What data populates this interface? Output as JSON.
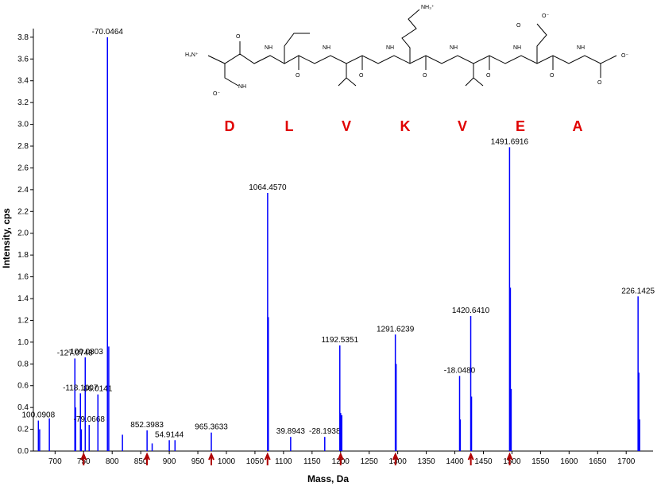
{
  "chart_data": {
    "type": "stem",
    "xlabel": "Mass, Da",
    "ylabel": "Intensity, cps",
    "color": "#0000ff",
    "x": [
      670.8,
      673,
      690,
      734.7,
      736,
      744.4,
      746,
      752.8,
      759.7,
      775,
      791.7,
      794,
      818,
      861.1,
      870,
      900,
      910,
      973.6,
      1072.2,
      1073.4,
      1112.5,
      1172.2,
      1198.6,
      1200,
      1202,
      1295.8,
      1297.2,
      1408.3,
      1409.5,
      1427.8,
      1429.2,
      1495.8,
      1497.2,
      1498.6,
      1720.8,
      1722.2,
      1723.6
    ],
    "values": [
      0.28,
      0.2,
      0.3,
      0.85,
      0.4,
      0.53,
      0.2,
      0.86,
      0.24,
      0.52,
      3.8,
      0.96,
      0.15,
      0.19,
      0.07,
      0.1,
      0.1,
      0.17,
      2.37,
      1.23,
      0.13,
      0.13,
      0.97,
      0.35,
      0.33,
      1.07,
      0.8,
      0.69,
      0.29,
      1.24,
      0.5,
      2.79,
      1.5,
      0.57,
      1.42,
      0.72,
      0.29
    ],
    "peak_labels": [
      "100.0908",
      null,
      null,
      "-127.0748",
      null,
      "-118.1007",
      null,
      "-109.0803",
      "-79.0668",
      "86.0141",
      "-70.0464",
      null,
      null,
      "852.3983",
      null,
      "54.9144",
      null,
      "965.3633",
      "1064.4570",
      null,
      "39.8943",
      "-28.1938",
      "1192.5351",
      null,
      null,
      "1291.6239",
      null,
      "-18.0480",
      null,
      "1420.6410",
      null,
      "1491.6916",
      null,
      null,
      "226.1425",
      null,
      null
    ],
    "xlim": [
      662,
      1747
    ],
    "ylim": [
      0,
      3.85
    ],
    "xticks": [
      700,
      750,
      800,
      850,
      900,
      950,
      1000,
      1050,
      1100,
      1150,
      1200,
      1250,
      1300,
      1350,
      1400,
      1450,
      1500,
      1550,
      1600,
      1650,
      1700
    ],
    "yticks": [
      {
        "value": 0,
        "label": "0.0"
      },
      0.2,
      0.4,
      0.6,
      0.8,
      {
        "value": 1,
        "label": "1.0"
      },
      1.2,
      1.4,
      1.6,
      1.8,
      {
        "value": 2,
        "label": "2.0"
      },
      2.2,
      2.4,
      2.6,
      2.8,
      {
        "value": 3,
        "label": "3.0"
      },
      3.2,
      3.4,
      3.6,
      3.8
    ]
  },
  "markers": {
    "x": [
      750,
      861,
      973.6,
      1072,
      1200,
      1296,
      1428,
      1496
    ],
    "color": "#b00000"
  },
  "structure": {
    "residues": [
      "D",
      "L",
      "V",
      "K",
      "V",
      "E",
      "A"
    ],
    "atoms": [
      "H₃N⁺",
      "O⁻",
      "NH",
      "O",
      "NH",
      "O",
      "NH",
      "O",
      "NH₃⁺",
      "NH",
      "O",
      "NH",
      "O",
      "NH",
      "O",
      "O⁻",
      "O",
      "NH",
      "O⁻",
      "O"
    ]
  }
}
